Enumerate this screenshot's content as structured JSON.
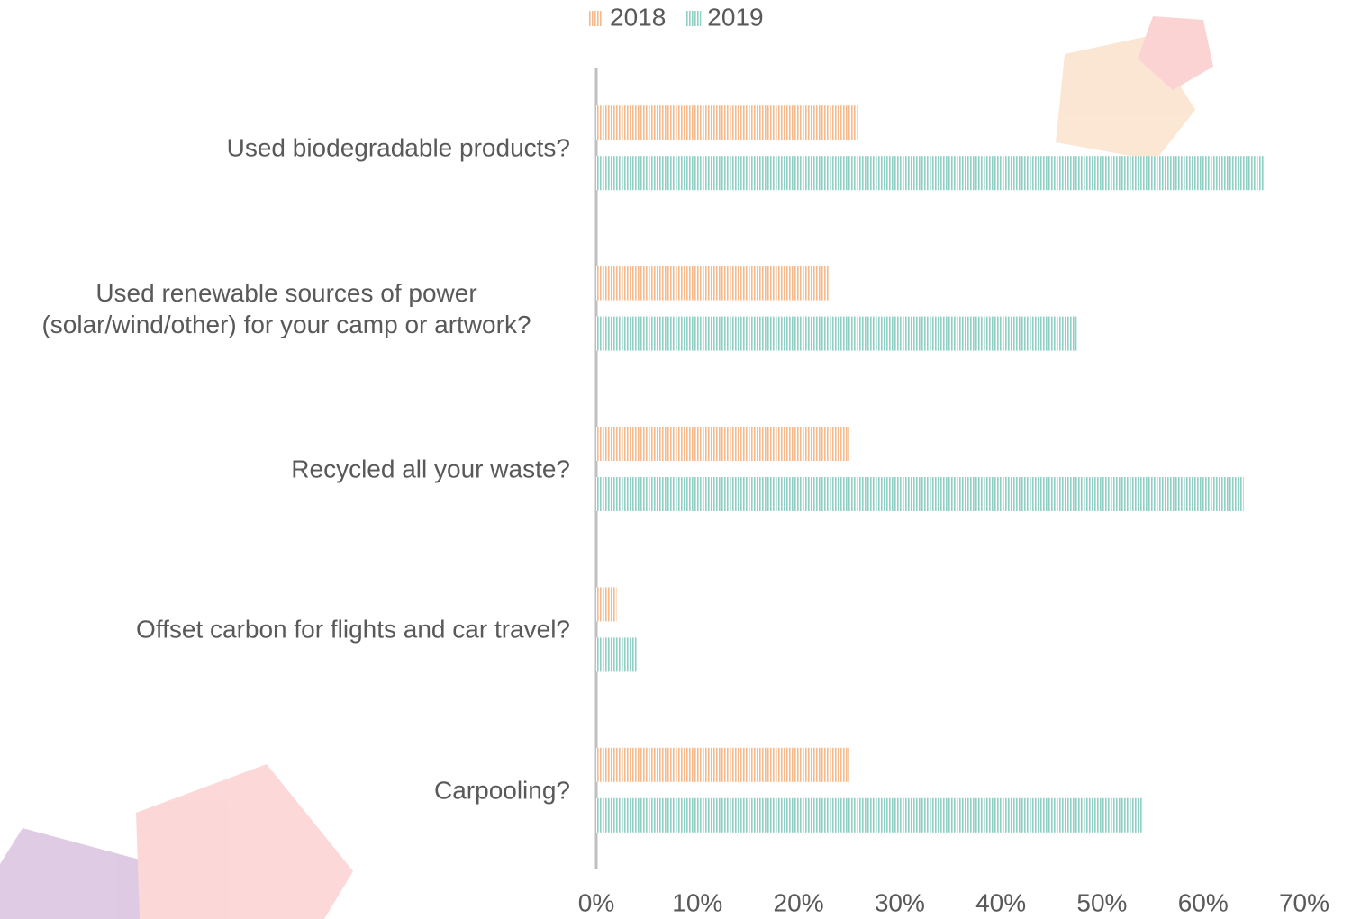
{
  "chart_data": {
    "type": "hbar",
    "categories": [
      "Used biodegradable products?",
      "Used renewable sources of power (solar/wind/other) for your camp or artwork?",
      "Recycled all your waste?",
      "Offset carbon for flights and car travel?",
      "Carpooling?"
    ],
    "series": [
      {
        "name": "2018",
        "color": "#f5b98c",
        "values": [
          26,
          23,
          25,
          2,
          25
        ]
      },
      {
        "name": "2019",
        "color": "#8fcfc6",
        "values": [
          66,
          47.5,
          64,
          4,
          54
        ]
      }
    ],
    "xlim": [
      0,
      70
    ],
    "xticks": [
      {
        "value": 0,
        "label": "0%"
      },
      {
        "value": 10,
        "label": "10%"
      },
      {
        "value": 20,
        "label": "20%"
      },
      {
        "value": 30,
        "label": "30%"
      },
      {
        "value": 40,
        "label": "40%"
      },
      {
        "value": 50,
        "label": "50%"
      },
      {
        "value": 60,
        "label": "60%"
      },
      {
        "value": 70,
        "label": "70%"
      }
    ],
    "legend": "top",
    "grid": false
  }
}
